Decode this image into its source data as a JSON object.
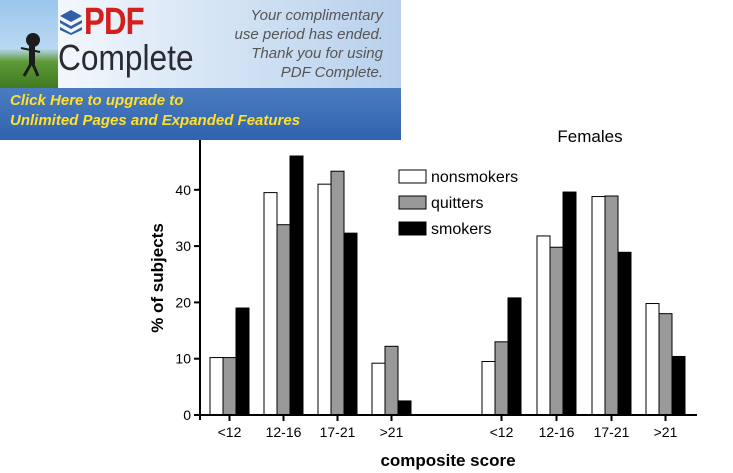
{
  "banner": {
    "brand_pdf": "PDF",
    "brand_complete": "Complete",
    "message_lines": [
      "Your complimentary",
      "use period has ended.",
      "Thank you for using",
      "PDF Complete."
    ],
    "cta_lines": [
      "Click Here to upgrade to",
      "Unlimited Pages and Expanded Features"
    ]
  },
  "chart_data": {
    "type": "bar",
    "title": "Females",
    "xlabel": "composite score",
    "ylabel": "% of subjects",
    "ylim": [
      0,
      50
    ],
    "yticks": [
      0,
      10,
      20,
      30,
      40
    ],
    "groups": [
      "<12",
      "12-16",
      "17-21",
      ">21",
      "<12",
      "12-16",
      "17-21",
      ">21"
    ],
    "series": [
      {
        "name": "nonsmokers",
        "color": "#ffffff",
        "values": [
          10.2,
          39.5,
          41.0,
          9.2,
          9.5,
          31.8,
          38.8,
          19.8
        ]
      },
      {
        "name": "quitters",
        "color": "#999999",
        "values": [
          10.2,
          33.8,
          43.3,
          12.2,
          13.0,
          29.8,
          38.9,
          18.0
        ]
      },
      {
        "name": "smokers",
        "color": "#000000",
        "values": [
          19.0,
          46.0,
          32.3,
          2.5,
          20.8,
          39.6,
          28.9,
          10.4
        ]
      }
    ],
    "legend_position": "top-center",
    "grid": false
  }
}
